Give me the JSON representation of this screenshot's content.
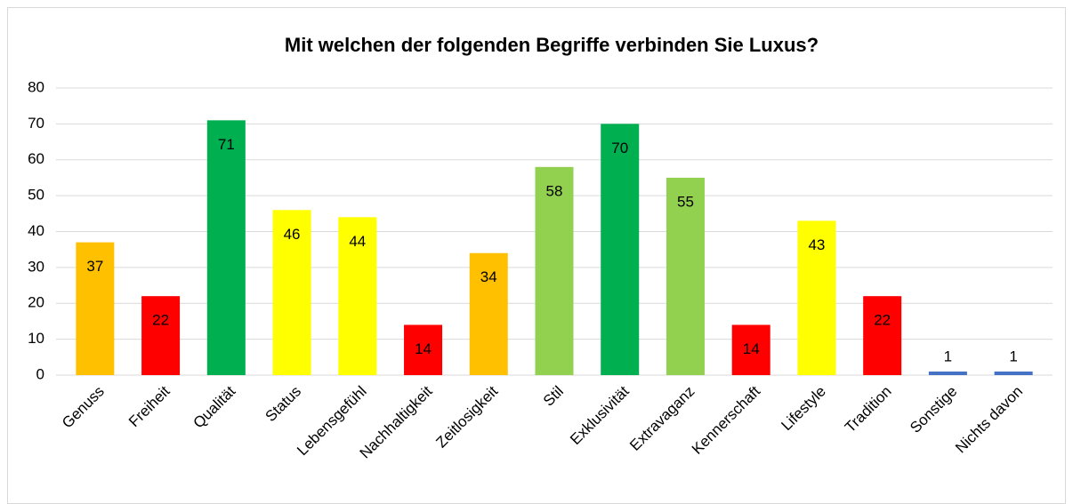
{
  "chart_data": {
    "type": "bar",
    "title": "Mit welchen der folgenden Begriffe verbinden Sie Luxus?",
    "categories": [
      "Genuss",
      "Freiheit",
      "Qualität",
      "Status",
      "Lebensgefühl",
      "Nachhaltigkeit",
      "Zeitlosigkeit",
      "Stil",
      "Exklusivität",
      "Extravaganz",
      "Kennerschaft",
      "Lifestyle",
      "Tradition",
      "Sonstige",
      "Nichts davon"
    ],
    "values": [
      37,
      22,
      71,
      46,
      44,
      14,
      34,
      58,
      70,
      55,
      14,
      43,
      22,
      1,
      1
    ],
    "colors": [
      "#FFC000",
      "#FF0000",
      "#00B050",
      "#FFFF00",
      "#FFFF00",
      "#FF0000",
      "#FFC000",
      "#92D050",
      "#00B050",
      "#92D050",
      "#FF0000",
      "#FFFF00",
      "#FF0000",
      "#4472C4",
      "#4472C4"
    ],
    "ylim": [
      0,
      80
    ],
    "yticks": [
      0,
      10,
      20,
      30,
      40,
      50,
      60,
      70,
      80
    ],
    "grid": true
  }
}
